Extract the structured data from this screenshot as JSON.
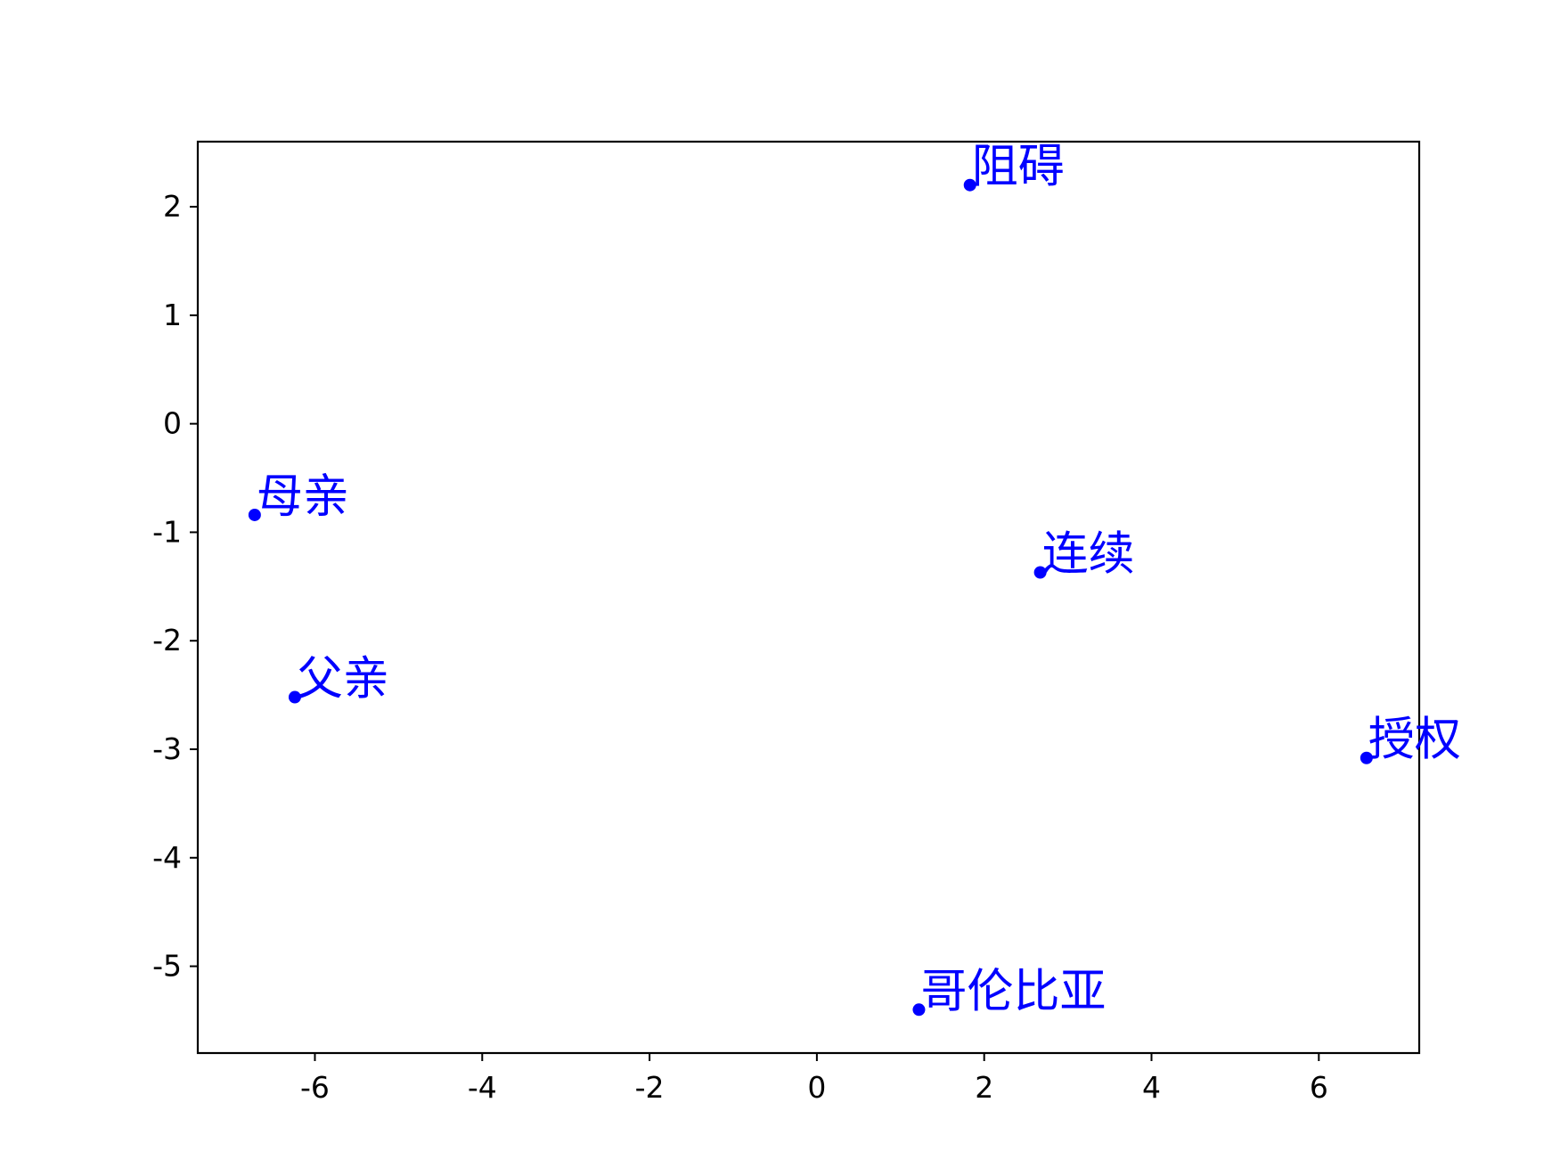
{
  "chart_data": {
    "type": "scatter",
    "title": "",
    "xlabel": "",
    "ylabel": "",
    "xlim": [
      -7.4,
      7.2
    ],
    "ylim": [
      -5.8,
      2.6
    ],
    "xticks": [
      -6,
      -4,
      -2,
      0,
      2,
      4,
      6
    ],
    "yticks": [
      2,
      1,
      0,
      -1,
      -2,
      -3,
      -4,
      -5
    ],
    "grid": false,
    "point_color": "#0000ff",
    "points": [
      {
        "label": "阻碍",
        "x": 1.83,
        "y": 2.2
      },
      {
        "label": "母亲",
        "x": -6.72,
        "y": -0.84
      },
      {
        "label": "连续",
        "x": 2.67,
        "y": -1.37
      },
      {
        "label": "父亲",
        "x": -6.24,
        "y": -2.52
      },
      {
        "label": "授权",
        "x": 6.57,
        "y": -3.08
      },
      {
        "label": "哥伦比亚",
        "x": 1.22,
        "y": -5.4
      }
    ]
  }
}
